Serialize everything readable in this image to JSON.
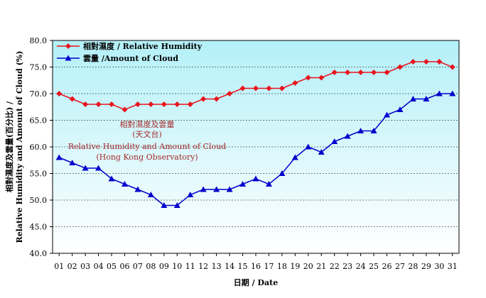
{
  "chart_data": {
    "type": "line",
    "categories": [
      "01",
      "02",
      "03",
      "04",
      "05",
      "06",
      "07",
      "08",
      "09",
      "10",
      "11",
      "12",
      "13",
      "14",
      "15",
      "16",
      "17",
      "18",
      "19",
      "20",
      "21",
      "22",
      "23",
      "24",
      "25",
      "26",
      "27",
      "28",
      "29",
      "30",
      "31"
    ],
    "series": [
      {
        "name": "相對濕度 / Relative Humidity",
        "color": "#e8141e",
        "marker": "diamond",
        "values": [
          70,
          69,
          68,
          68,
          68,
          67,
          68,
          68,
          68,
          68,
          68,
          69,
          69,
          70,
          71,
          71,
          71,
          71,
          72,
          73,
          73,
          74,
          74,
          74,
          74,
          74,
          75,
          76,
          76,
          76,
          75
        ]
      },
      {
        "name": "雲量 /Amount of Cloud",
        "color": "#0000cc",
        "marker": "triangle",
        "values": [
          58,
          57,
          56,
          56,
          54,
          53,
          52,
          51,
          49,
          49,
          51,
          52,
          52,
          52,
          53,
          54,
          53,
          55,
          58,
          60,
          59,
          61,
          62,
          63,
          63,
          66,
          67,
          69,
          69,
          70,
          70
        ]
      }
    ],
    "ylim": [
      40.0,
      80.0
    ],
    "yticks": [
      "40.0",
      "45.0",
      "50.0",
      "55.0",
      "60.0",
      "65.0",
      "70.0",
      "75.0",
      "80.0"
    ],
    "xlabel": "日期 / Date",
    "ylabel_line1": "相對濕度及雲量(百分比) /",
    "ylabel_line2": "Relative Humidity and Amount of Cloud (%)",
    "legend_position": "top-left",
    "annotation": [
      "相對濕度及雲量",
      "(天文台)",
      "Relative Humidity and Amount of Cloud",
      "(Hong Kong Observatory)"
    ],
    "colors": {
      "plot_top": "#b4f0f8",
      "plot_bottom": "#ffffff",
      "annotation": "#a52a2a"
    }
  }
}
